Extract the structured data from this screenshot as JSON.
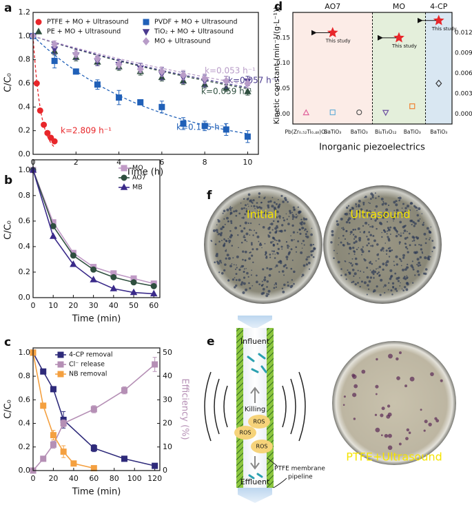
{
  "chart_data": [
    {
      "type": "scatter",
      "panel_label": "a",
      "x_label": "Time (h)",
      "y_label": "C/C₀",
      "xlim": [
        0,
        10.5
      ],
      "xticks": [
        0,
        2,
        4,
        6,
        8,
        10
      ],
      "ylim": [
        0,
        1.2
      ],
      "yticks": [
        {
          "value": 0,
          "label": "0.0"
        },
        0.2,
        0.4,
        0.6,
        0.8,
        {
          "value": 1,
          "label": "1.0"
        },
        1.2
      ],
      "legend": "top",
      "series": [
        {
          "name": "PTFE + MO + Ultrasound",
          "color": "#e8262a",
          "marker": "circle",
          "x": [
            0,
            0.17,
            0.33,
            0.5,
            0.67,
            0.83,
            1
          ],
          "values": [
            1,
            0.6,
            0.37,
            0.25,
            0.18,
            0.14,
            0.11
          ],
          "k": 2.809,
          "k_label": "k=2.809 h⁻¹"
        },
        {
          "name": "PE + MO + Ultrasound",
          "color": "#2f4f3f",
          "marker": "triangle",
          "x": [
            0,
            1,
            2,
            3,
            4,
            5,
            6,
            7,
            8,
            9,
            10
          ],
          "values": [
            1,
            0.87,
            0.82,
            0.78,
            0.74,
            0.7,
            0.65,
            0.62,
            0.59,
            0.56,
            0.53
          ],
          "errors": [
            0,
            0.03,
            0.03,
            0.03,
            0.03,
            0.03,
            0.03,
            0.03,
            0.03,
            0.03,
            0.03
          ],
          "k": 0.059,
          "k_label": "k=0.059 h⁻¹"
        },
        {
          "name": "PVDF + MO + Ultrasound",
          "color": "#2060b8",
          "marker": "square",
          "x": [
            0,
            1,
            2,
            3,
            4,
            5,
            6,
            7,
            8,
            9,
            10
          ],
          "values": [
            1,
            0.79,
            0.7,
            0.59,
            0.48,
            0.44,
            0.4,
            0.26,
            0.24,
            0.21,
            0.15
          ],
          "errors": [
            0,
            0.06,
            0.02,
            0.04,
            0.06,
            0.02,
            0.05,
            0.05,
            0.04,
            0.05,
            0.05
          ],
          "k": 0.175,
          "k_label": "k=0.175 h⁻¹"
        },
        {
          "name": "TiO₂ + MO + Ultrasound",
          "color": "#4a3a8e",
          "marker": "triangle-down",
          "x": [
            0,
            1,
            2,
            3,
            4,
            5,
            6,
            7,
            8,
            9,
            10
          ],
          "values": [
            1,
            0.89,
            0.84,
            0.79,
            0.76,
            0.73,
            0.68,
            0.65,
            0.62,
            0.61,
            0.62
          ],
          "errors": [
            0,
            0.04,
            0.04,
            0.04,
            0.04,
            0.04,
            0.05,
            0.05,
            0.05,
            0.05,
            0.04
          ],
          "k": 0.057,
          "k_label": "k=0.057 h⁻¹"
        },
        {
          "name": "MO + Ultrasound",
          "color": "#b89cc8",
          "marker": "diamond",
          "x": [
            0,
            1,
            2,
            3,
            4,
            5,
            6,
            7,
            8,
            9,
            10
          ],
          "values": [
            1,
            0.93,
            0.85,
            0.81,
            0.76,
            0.72,
            0.7,
            0.67,
            0.64,
            0.62,
            0.6
          ],
          "errors": [
            0,
            0.03,
            0.03,
            0.03,
            0.03,
            0.03,
            0.04,
            0.04,
            0.04,
            0.04,
            0.04
          ],
          "k": 0.053,
          "k_label": "k=0.053 h⁻¹"
        }
      ]
    },
    {
      "type": "line",
      "panel_label": "b",
      "x_label": "Time (min)",
      "y_label": "C/C₀",
      "x": [
        0,
        10,
        20,
        30,
        40,
        50,
        60
      ],
      "xlim": [
        0,
        63
      ],
      "xticks": [
        0,
        10,
        20,
        30,
        40,
        50,
        60
      ],
      "ylim": [
        0,
        1.08
      ],
      "yticks": [
        {
          "value": 0,
          "label": "0.0"
        },
        0.2,
        0.4,
        0.6,
        0.8,
        {
          "value": 1,
          "label": "1.0"
        }
      ],
      "legend": "upper right",
      "series": [
        {
          "name": "MO",
          "color": "#c09ac6",
          "marker": "square",
          "values": [
            1,
            0.59,
            0.35,
            0.24,
            0.19,
            0.15,
            0.11
          ]
        },
        {
          "name": "AO7",
          "color": "#2f4f3f",
          "marker": "circle",
          "values": [
            1,
            0.56,
            0.33,
            0.22,
            0.16,
            0.12,
            0.09
          ]
        },
        {
          "name": "MB",
          "color": "#3a2a8a",
          "marker": "triangle",
          "values": [
            1,
            0.48,
            0.26,
            0.14,
            0.07,
            0.04,
            0.03
          ]
        }
      ]
    },
    {
      "type": "line",
      "panel_label": "c",
      "x_label": "Time (min)",
      "y_label": "C/C₀",
      "y2_label": "Efficiency (%)",
      "xlim": [
        0,
        125
      ],
      "xticks": [
        0,
        20,
        40,
        60,
        80,
        100,
        120
      ],
      "ylim": [
        0,
        1.04
      ],
      "yticks": [
        {
          "value": 0,
          "label": "0.0"
        },
        0.2,
        0.4,
        0.6,
        0.8,
        {
          "value": 1,
          "label": "1.0"
        }
      ],
      "y2lim": [
        0,
        52
      ],
      "y2ticks": [
        0,
        10,
        20,
        30,
        40,
        50
      ],
      "legend": "upper right",
      "series": [
        {
          "name": "4-CP removal",
          "color": "#2e2a7a",
          "marker": "square",
          "x": [
            0,
            10,
            20,
            30,
            60,
            90,
            120
          ],
          "values": [
            1,
            0.84,
            0.69,
            0.43,
            0.19,
            0.1,
            0.04
          ],
          "errors": [
            0,
            0.02,
            0.02,
            0.07,
            0.03,
            0.01,
            0.01
          ]
        },
        {
          "name": "Cl⁻ release",
          "color": "#b58fb5",
          "marker": "square",
          "axis": "y2",
          "x": [
            0,
            10,
            20,
            30,
            60,
            90,
            120
          ],
          "values": [
            0,
            5,
            11,
            20,
            26,
            34,
            45
          ],
          "errors": [
            0,
            0.5,
            1.5,
            1.5,
            1.5,
            1.5,
            3
          ]
        },
        {
          "name": "NB removal",
          "color": "#f4a040",
          "marker": "square",
          "x": [
            0,
            10,
            20,
            30,
            40,
            60
          ],
          "values": [
            1,
            0.55,
            0.3,
            0.16,
            0.06,
            0.02
          ],
          "errors": [
            0,
            0.02,
            0.04,
            0.05,
            0.02,
            0.01
          ]
        }
      ]
    },
    {
      "type": "dot",
      "panel_label": "d",
      "x_label": "Inorganic piezoelectrics",
      "y_label": "Kinetic constant (min⁻¹/(g·L⁻¹))",
      "ylim": [
        -0.02,
        0.2
      ],
      "yticks": [
        {
          "value": 0,
          "label": "0.00"
        },
        {
          "value": 0.05,
          "label": "0.05"
        },
        {
          "value": 0.1,
          "label": "0.10"
        },
        {
          "value": 0.15,
          "label": "0.15"
        }
      ],
      "y2lim": [
        -0.0015,
        0.015
      ],
      "y2ticks": [
        {
          "value": 0,
          "label": "0.000"
        },
        {
          "value": 0.003,
          "label": "0.003"
        },
        {
          "value": 0.006,
          "label": "0.006"
        },
        {
          "value": 0.009,
          "label": "0.009"
        },
        {
          "value": 0.012,
          "label": "0.012"
        }
      ],
      "study_label": "This study",
      "study_color": "#e8262a",
      "groups": [
        {
          "name": "AO7",
          "color": "#fcece7",
          "categories": [
            "Pb(Zr₀.₅₂Ti₀.₄₈)O₃",
            "BaTiO₃",
            "BaTiO₃"
          ],
          "values": [
            0.002,
            0.003,
            0.003
          ],
          "markers": [
            "triangle",
            "square",
            "circle"
          ],
          "marker_colors": [
            "#e0609a",
            "#6ab0d8",
            "#555555"
          ],
          "study": 0.16
        },
        {
          "name": "MO",
          "color": "#e4efdb",
          "categories": [
            "Bi₄Ti₃O₁₂",
            "BaTiO₃"
          ],
          "values": [
            0.003,
            0.015
          ],
          "markers": [
            "triangle-down",
            "square"
          ],
          "marker_colors": [
            "#6a4ca0",
            "#f08030"
          ],
          "study": 0.15
        },
        {
          "name": "4-CP",
          "color": "#d9e7f2",
          "axis": "y2",
          "categories": [
            "BaTiO₃"
          ],
          "values": [
            0.0045
          ],
          "markers": [
            "diamond"
          ],
          "marker_colors": [
            "#333333"
          ],
          "study": 0.0138
        }
      ]
    }
  ],
  "photos": {
    "panel_label": "f",
    "labels": [
      "Initial",
      "Ultrasound"
    ]
  },
  "diagram": {
    "panel_label": "e",
    "influent": "Influent",
    "killing": "Killing",
    "ros": "ROS",
    "membrane": "PTFE membrane",
    "pipeline": "pipeline",
    "effluent": "Effluent",
    "dish_label": "PTFE+Ultrasound"
  }
}
